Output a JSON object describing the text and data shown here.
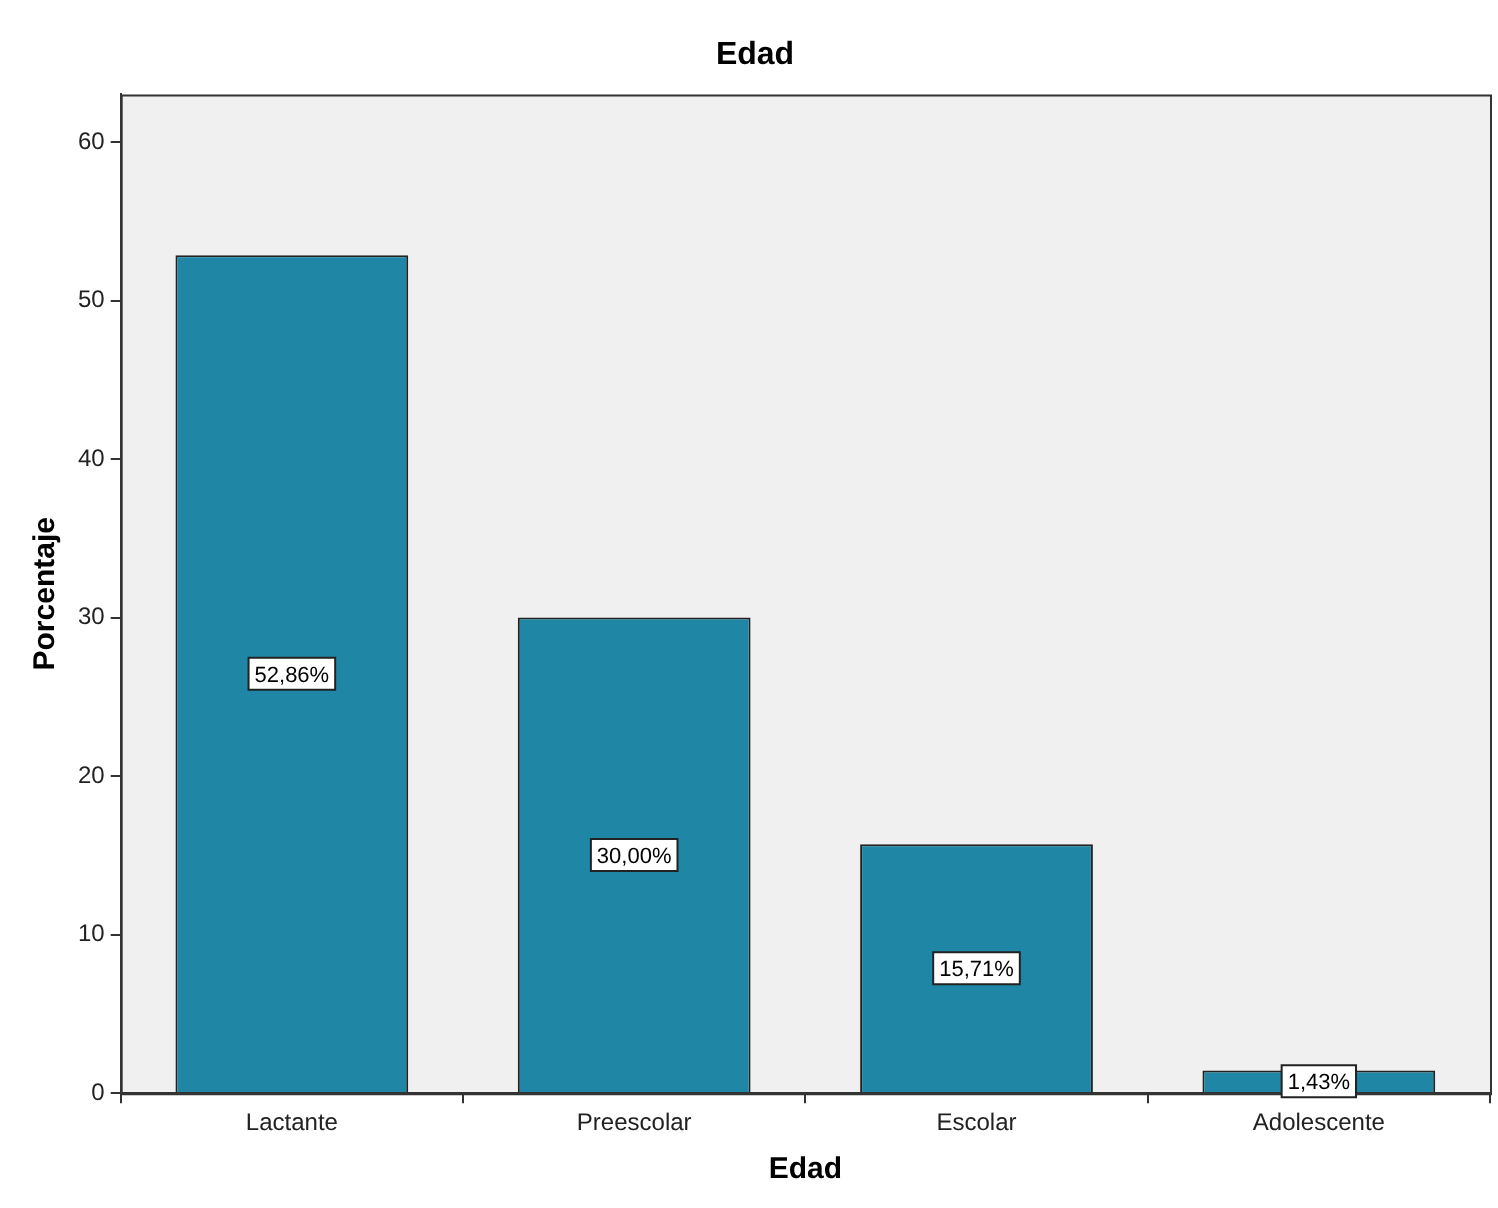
{
  "chart_data": {
    "type": "bar",
    "title": "Edad",
    "xlabel": "Edad",
    "ylabel": "Porcentaje",
    "categories": [
      "Lactante",
      "Preescolar",
      "Escolar",
      "Adolescente"
    ],
    "values": [
      52.86,
      30.0,
      15.71,
      1.43
    ],
    "value_labels": [
      "52,86%",
      "30,00%",
      "15,71%",
      "1,43%"
    ],
    "color": "#1f87a5",
    "ylim": [
      0,
      63
    ],
    "yticks": [
      0,
      10,
      20,
      30,
      40,
      50,
      60
    ],
    "grid": false,
    "legend": false
  }
}
